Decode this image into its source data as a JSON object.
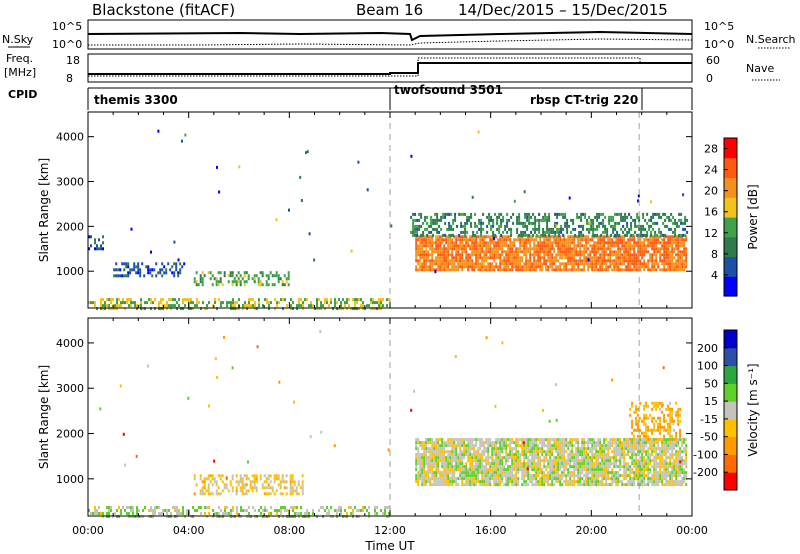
{
  "header": {
    "station": "Blackstone (fitACF)",
    "beam": "Beam 16",
    "dates": "14/Dec/2015 – 15/Dec/2015"
  },
  "strips": {
    "nsky": {
      "label": "N.Sky",
      "ticks": [
        "10^5",
        "10^0"
      ]
    },
    "nsearch": {
      "label": "N.Search",
      "ticks": [
        "10^5",
        "10^0"
      ]
    },
    "freq": {
      "label_top": "Freq.",
      "label_unit": "[MHz]",
      "ticks": [
        "18",
        "8"
      ]
    },
    "nave": {
      "label": "Nave",
      "ticks": [
        "60",
        "0"
      ]
    },
    "cpid": {
      "label": "CPID",
      "modes": [
        {
          "name": "themis 3300",
          "start_h": 0.0
        },
        {
          "name": "twofsound 3501",
          "start_h": 12.0
        },
        {
          "name": "rbsp CT-trig 220",
          "start_h": 21.9
        }
      ]
    }
  },
  "colors": {
    "power": [
      "#0000ff",
      "#1e4fa6",
      "#2f7b4e",
      "#3fa24a",
      "#f2c31d",
      "#f2911d",
      "#ff5a14",
      "#ff0000"
    ],
    "velocity": [
      "#ff0000",
      "#ff6b00",
      "#ff9a00",
      "#ffc000",
      "#c4c4bc",
      "#5fcf2a",
      "#2ea63f",
      "#2d4fa8",
      "#0000c8"
    ],
    "grey_scatter": "#c8c8c0"
  },
  "chart_data": [
    {
      "type": "heatmap",
      "title": "Power",
      "xlabel": "Time UT",
      "ylabel": "Slant Range [km]",
      "xlim_hours": [
        0,
        24
      ],
      "ylim_km": [
        180,
        4550
      ],
      "x_ticks": [
        "00:00",
        "04:00",
        "08:00",
        "12:00",
        "16:00",
        "20:00",
        "00:00"
      ],
      "y_ticks": [
        1000,
        2000,
        3000,
        4000
      ],
      "colorbar": {
        "label": "Power [dB]",
        "ticks": [
          4,
          8,
          12,
          16,
          20,
          24,
          28
        ],
        "range": [
          0,
          30
        ]
      },
      "regions": [
        {
          "t": [
            13.0,
            23.8
          ],
          "r": [
            1000,
            1800
          ],
          "level": 22
        },
        {
          "t": [
            12.8,
            23.8
          ],
          "r": [
            1800,
            2300
          ],
          "level": 10
        },
        {
          "t": [
            4.2,
            8.0
          ],
          "r": [
            700,
            1000
          ],
          "level": 13
        },
        {
          "t": [
            1.0,
            3.8
          ],
          "r": [
            900,
            1200
          ],
          "level": 6
        },
        {
          "t": [
            0.0,
            12.0
          ],
          "r": [
            190,
            400
          ],
          "level": 15
        },
        {
          "t": [
            0.0,
            0.6
          ],
          "r": [
            1500,
            1800
          ],
          "level": 6
        }
      ],
      "dashed_lines_h": [
        12.0,
        21.9
      ]
    },
    {
      "type": "heatmap",
      "title": "Velocity",
      "xlabel": "Time UT",
      "ylabel": "Slant Range [km]",
      "xlim_hours": [
        0,
        24
      ],
      "ylim_km": [
        180,
        4550
      ],
      "x_ticks": [
        "00:00",
        "04:00",
        "08:00",
        "12:00",
        "16:00",
        "20:00",
        "00:00"
      ],
      "y_ticks": [
        1000,
        2000,
        3000,
        4000
      ],
      "colorbar": {
        "label": "Velocity [m s⁻¹]",
        "ticks": [
          -200,
          -100,
          -50,
          -15,
          15,
          50,
          100,
          200
        ],
        "range": [
          -250,
          250
        ]
      },
      "regions": [
        {
          "t": [
            13.0,
            23.8
          ],
          "r": [
            900,
            1900
          ],
          "level": 0
        },
        {
          "t": [
            4.2,
            8.5
          ],
          "r": [
            700,
            1100
          ],
          "level": -40
        },
        {
          "t": [
            0.0,
            12.0
          ],
          "r": [
            190,
            400
          ],
          "level": 20
        },
        {
          "t": [
            21.5,
            23.5
          ],
          "r": [
            1900,
            2700
          ],
          "level": -80
        }
      ],
      "dashed_lines_h": [
        12.0,
        21.9
      ]
    }
  ]
}
